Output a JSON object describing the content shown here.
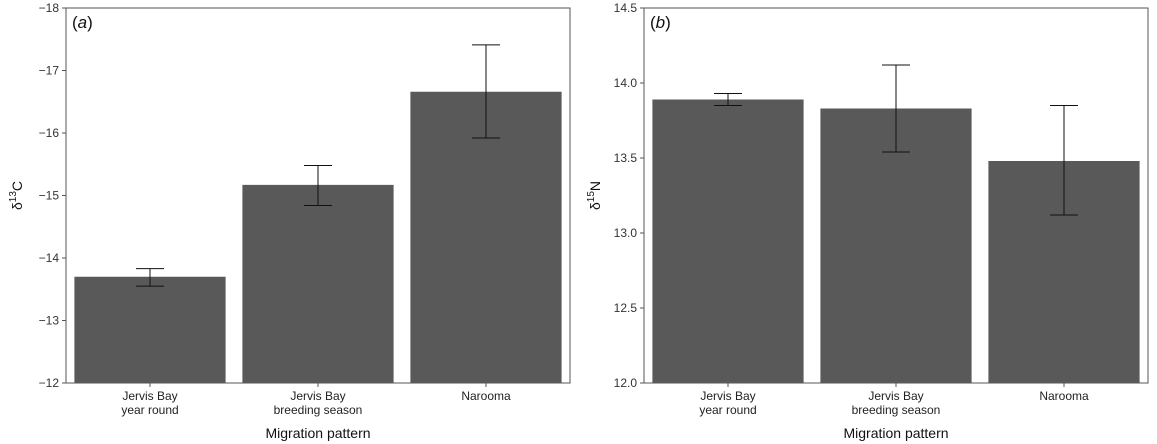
{
  "figure": {
    "colors": {
      "bar": "#595959",
      "frame": "#555555",
      "error": "#111111",
      "text": "#222222"
    }
  },
  "chart_data": [
    {
      "type": "bar",
      "panel_label_open": "(",
      "panel_label_letter": "a",
      "panel_label_close": ")",
      "title": "",
      "xlabel": "Migration pattern",
      "ylabel_prefix": "δ",
      "ylabel_sup": "13",
      "ylabel_suffix": "C",
      "categories": [
        {
          "line1": "Jervis Bay",
          "line2": "year round"
        },
        {
          "line1": "Jervis Bay",
          "line2": "breeding season"
        },
        {
          "line1": "Narooma",
          "line2": ""
        }
      ],
      "values": [
        -13.7,
        -15.17,
        -16.66
      ],
      "error_low": [
        -13.55,
        -14.84,
        -15.92
      ],
      "error_high": [
        -13.83,
        -15.48,
        -17.41
      ],
      "ylim": [
        -12,
        -18
      ],
      "yticks": [
        "−12",
        "−13",
        "−14",
        "−15",
        "−16",
        "−17",
        "−18"
      ],
      "ytick_values": [
        -12,
        -13,
        -14,
        -15,
        -16,
        -17,
        -18
      ],
      "grid": false
    },
    {
      "type": "bar",
      "panel_label_open": "(",
      "panel_label_letter": "b",
      "panel_label_close": ")",
      "title": "",
      "xlabel": "Migration pattern",
      "ylabel_prefix": "δ",
      "ylabel_sup": "15",
      "ylabel_suffix": "N",
      "categories": [
        {
          "line1": "Jervis Bay",
          "line2": "year round"
        },
        {
          "line1": "Jervis Bay",
          "line2": "breeding season"
        },
        {
          "line1": "Narooma",
          "line2": ""
        }
      ],
      "values": [
        13.89,
        13.83,
        13.48
      ],
      "error_low": [
        13.85,
        13.54,
        13.12
      ],
      "error_high": [
        13.93,
        14.12,
        13.85
      ],
      "ylim": [
        12,
        14.5
      ],
      "yticks": [
        "12.0",
        "12.5",
        "13.0",
        "13.5",
        "14.0",
        "14.5"
      ],
      "ytick_values": [
        12,
        12.5,
        13,
        13.5,
        14,
        14.5
      ],
      "grid": false
    }
  ]
}
